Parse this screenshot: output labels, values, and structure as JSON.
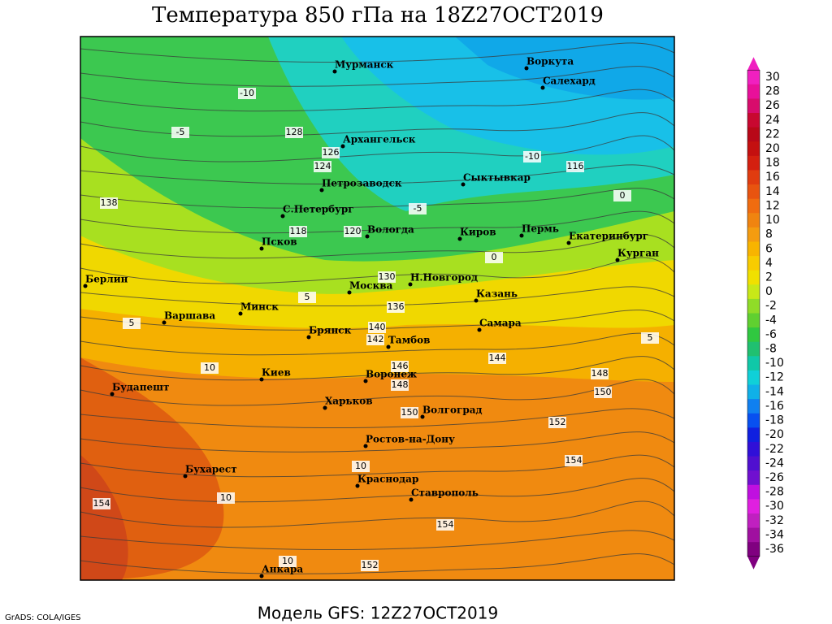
{
  "title": "Температура 850 гПа на 18Z27OCT2019",
  "footer": "Модель GFS: 12Z27OCT2019",
  "credit": "GrADS: COLA/IGES",
  "cities": [
    "Мурманск",
    "Воркута",
    "Салехард",
    "Архангельск",
    "Петрозаводск",
    "Сыктывкар",
    "С.Петербург",
    "Вологда",
    "Киров",
    "Пермь",
    "Екатеринбург",
    "Курган",
    "Псков",
    "Москва",
    "Н.Новгород",
    "Казань",
    "Берлин",
    "Минск",
    "Варшава",
    "Брянск",
    "Тамбов",
    "Самара",
    "Киев",
    "Воронеж",
    "Будапешт",
    "Харьков",
    "Волгоград",
    "Ростов-на-Дону",
    "Бухарест",
    "Краснодар",
    "Ставрополь",
    "Анкара"
  ],
  "contour_labels": [
    "-10",
    "-5",
    "128",
    "126",
    "124",
    "-10",
    "116",
    "-5",
    "0",
    "138",
    "120",
    "118",
    "0",
    "130",
    "136",
    "140",
    "142",
    "10",
    "146",
    "148",
    "150",
    "152",
    "154",
    "10",
    "10",
    "154",
    "154",
    "10",
    "152",
    "144",
    "150",
    "148",
    "5",
    "5",
    "5"
  ],
  "colorbar": {
    "labels": [
      30,
      28,
      26,
      24,
      22,
      20,
      18,
      16,
      14,
      12,
      10,
      8,
      6,
      4,
      2,
      0,
      -2,
      -4,
      -6,
      -8,
      -10,
      -12,
      -14,
      -16,
      -18,
      -20,
      -22,
      -24,
      -26,
      -28,
      -30,
      -32,
      -34,
      -36
    ],
    "colors": [
      "#f020c0",
      "#e8109a",
      "#d80c6c",
      "#c80830",
      "#b80818",
      "#c41010",
      "#d42010",
      "#e03c10",
      "#e85410",
      "#f06c10",
      "#f08410",
      "#f49c10",
      "#f8b400",
      "#f8cc00",
      "#f0e000",
      "#c8e818",
      "#90dc28",
      "#60d030",
      "#30c840",
      "#20c070",
      "#10c8a8",
      "#10d0d8",
      "#10b0e8",
      "#1080f0",
      "#0850f0",
      "#1020e0",
      "#3010d8",
      "#5010d0",
      "#7010d0",
      "#c010e0",
      "#e020e0",
      "#c020c0",
      "#a010a0",
      "#800080"
    ]
  }
}
